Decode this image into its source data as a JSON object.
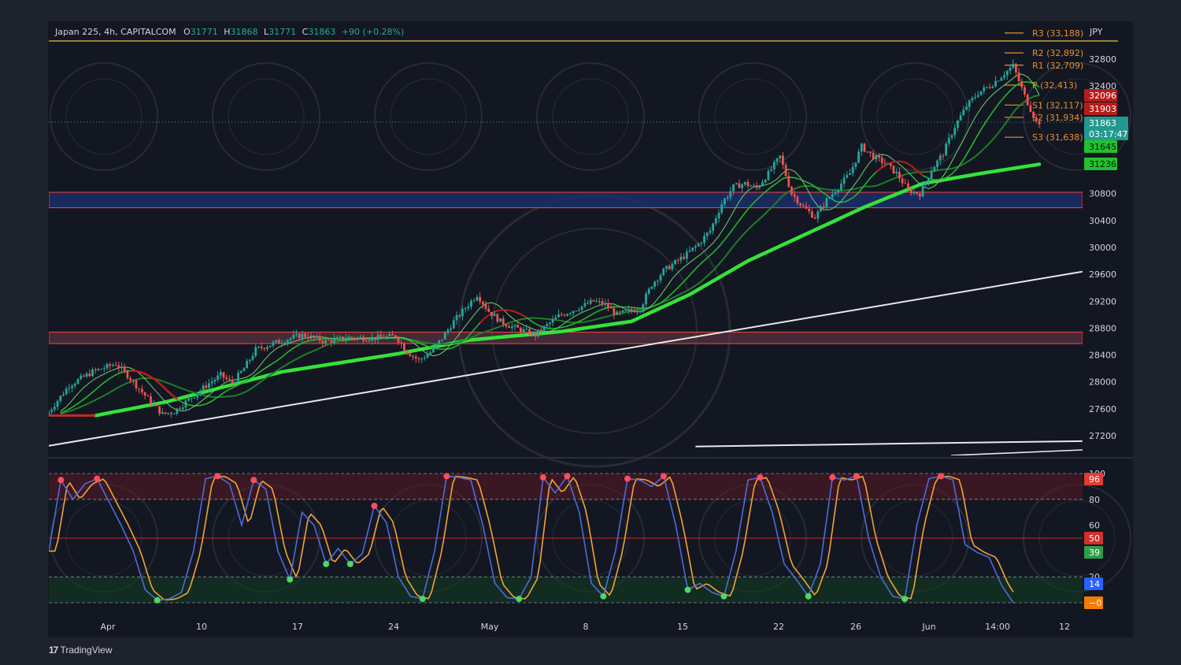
{
  "header": {
    "symbol": "Japan 225, 4h, CAPITALCOM",
    "o_label": "O",
    "o_value": "31771",
    "h_label": "H",
    "h_value": "31868",
    "l_label": "L",
    "l_value": "31771",
    "c_label": "C",
    "c_value": "31863",
    "change": "+90 (+0.28%)"
  },
  "currency": "JPY",
  "branding": "TradingView",
  "colors": {
    "bull": "#26a69a",
    "bear": "#ef5350",
    "ema_bright": "#33e33a",
    "ema_mid": "#22b52e",
    "ema_dark": "#1e7d2a",
    "pivot": "#e6902f",
    "trendline": "#e8e8e8",
    "zone_blue": "#1d2e66",
    "zone_red": "#ff4040",
    "stoch_k": "#4f6bd6",
    "stoch_d": "#f2a33a"
  },
  "price_axis": {
    "ticks": [
      "32800",
      "32400",
      "30800",
      "30400",
      "30000",
      "29600",
      "29200",
      "28800",
      "28400",
      "28000",
      "27600",
      "27200"
    ],
    "range": [
      26950,
      33650
    ]
  },
  "price_badges": [
    {
      "value": "32096",
      "bg": "#b71c1c"
    },
    {
      "value": "31903",
      "bg": "#b71c1c"
    },
    {
      "value": "31863",
      "sub": "03:17:47",
      "bg": "#22998f"
    },
    {
      "value": "31645",
      "bg": "#22c12e"
    },
    {
      "value": "31236",
      "bg": "#22c12e"
    }
  ],
  "pivots": [
    {
      "label": "R3 (33,188)",
      "value": 33188
    },
    {
      "label": "R2 (32,892)",
      "value": 32892
    },
    {
      "label": "R1 (32,709)",
      "value": 32709
    },
    {
      "label": "P (32,413)",
      "value": 32413
    },
    {
      "label": "S1 (32,117)",
      "value": 32117
    },
    {
      "label": "S2 (31,934)",
      "value": 31934
    },
    {
      "label": "S3 (31,638)",
      "value": 31638
    }
  ],
  "x_axis": {
    "labels": [
      "Apr",
      "10",
      "17",
      "24",
      "May",
      "8",
      "15",
      "22",
      "26",
      "Jun",
      "14:00",
      "12"
    ]
  },
  "oscillator": {
    "ticks": [
      "100",
      "80",
      "60",
      "20",
      "0"
    ],
    "levels": [
      80,
      50,
      20
    ],
    "badges": [
      {
        "value": "96",
        "bg": "#e53935"
      },
      {
        "value": "50",
        "bg": "#d32f2f"
      },
      {
        "value": "39",
        "bg": "#2e9e4a"
      },
      {
        "value": "14",
        "bg": "#2962ff"
      },
      {
        "value": "−0",
        "bg": "#f57c00"
      }
    ]
  },
  "chart_data": {
    "type": "line",
    "symbol": "Japan 225",
    "timeframe": "4h",
    "ylim": [
      26950,
      33650
    ],
    "zones": [
      {
        "from": 30590,
        "to": 30820
      },
      {
        "from": 28570,
        "to": 28740
      }
    ],
    "close_path": [
      {
        "day": 0,
        "price": 27500
      },
      {
        "day": 2,
        "price": 27950
      },
      {
        "day": 4,
        "price": 28150
      },
      {
        "day": 6,
        "price": 28270
      },
      {
        "day": 7,
        "price": 28100
      },
      {
        "day": 9,
        "price": 27700
      },
      {
        "day": 10,
        "price": 27520
      },
      {
        "day": 11,
        "price": 27560
      },
      {
        "day": 12,
        "price": 27700
      },
      {
        "day": 14,
        "price": 27980
      },
      {
        "day": 15,
        "price": 28100
      },
      {
        "day": 16,
        "price": 27980
      },
      {
        "day": 17,
        "price": 28200
      },
      {
        "day": 18,
        "price": 28480
      },
      {
        "day": 20,
        "price": 28600
      },
      {
        "day": 22,
        "price": 28700
      },
      {
        "day": 24,
        "price": 28600
      },
      {
        "day": 26,
        "price": 28660
      },
      {
        "day": 28,
        "price": 28650
      },
      {
        "day": 30,
        "price": 28680
      },
      {
        "day": 31,
        "price": 28450
      },
      {
        "day": 32,
        "price": 28320
      },
      {
        "day": 33,
        "price": 28440
      },
      {
        "day": 34,
        "price": 28650
      },
      {
        "day": 35,
        "price": 28900
      },
      {
        "day": 36,
        "price": 29100
      },
      {
        "day": 37,
        "price": 29300
      },
      {
        "day": 38,
        "price": 29050
      },
      {
        "day": 39,
        "price": 28900
      },
      {
        "day": 40,
        "price": 28820
      },
      {
        "day": 42,
        "price": 28700
      },
      {
        "day": 44,
        "price": 28980
      },
      {
        "day": 45,
        "price": 29050
      },
      {
        "day": 47,
        "price": 29200
      },
      {
        "day": 48,
        "price": 29150
      },
      {
        "day": 49,
        "price": 29000
      },
      {
        "day": 51,
        "price": 29100
      },
      {
        "day": 52,
        "price": 29450
      },
      {
        "day": 53,
        "price": 29650
      },
      {
        "day": 55,
        "price": 29900
      },
      {
        "day": 56,
        "price": 30050
      },
      {
        "day": 57,
        "price": 30250
      },
      {
        "day": 58,
        "price": 30650
      },
      {
        "day": 59,
        "price": 30900
      },
      {
        "day": 60,
        "price": 30950
      },
      {
        "day": 61,
        "price": 30880
      },
      {
        "day": 62,
        "price": 31100
      },
      {
        "day": 63,
        "price": 31350
      },
      {
        "day": 64,
        "price": 30800
      },
      {
        "day": 65,
        "price": 30600
      },
      {
        "day": 66,
        "price": 30450
      },
      {
        "day": 67,
        "price": 30700
      },
      {
        "day": 68,
        "price": 30900
      },
      {
        "day": 69,
        "price": 31100
      },
      {
        "day": 70,
        "price": 31500
      },
      {
        "day": 71,
        "price": 31350
      },
      {
        "day": 72,
        "price": 31250
      },
      {
        "day": 73,
        "price": 31100
      },
      {
        "day": 74,
        "price": 30850
      },
      {
        "day": 75,
        "price": 30800
      },
      {
        "day": 76,
        "price": 31150
      },
      {
        "day": 77,
        "price": 31400
      },
      {
        "day": 78,
        "price": 31800
      },
      {
        "day": 79,
        "price": 32100
      },
      {
        "day": 80,
        "price": 32300
      },
      {
        "day": 81,
        "price": 32400
      },
      {
        "day": 82,
        "price": 32550
      },
      {
        "day": 83,
        "price": 32700
      },
      {
        "day": 84,
        "price": 32250
      },
      {
        "day": 85,
        "price": 31863
      }
    ],
    "ema_slow": [
      {
        "day": 4,
        "price": 27500
      },
      {
        "day": 10,
        "price": 27700
      },
      {
        "day": 20,
        "price": 28150
      },
      {
        "day": 30,
        "price": 28420
      },
      {
        "day": 36,
        "price": 28620
      },
      {
        "day": 44,
        "price": 28750
      },
      {
        "day": 50,
        "price": 28900
      },
      {
        "day": 55,
        "price": 29300
      },
      {
        "day": 60,
        "price": 29800
      },
      {
        "day": 65,
        "price": 30200
      },
      {
        "day": 70,
        "price": 30600
      },
      {
        "day": 75,
        "price": 30950
      },
      {
        "day": 80,
        "price": 31100
      },
      {
        "day": 85,
        "price": 31236
      }
    ],
    "trendlines": [
      {
        "from": {
          "day": 0,
          "price": 27050
        },
        "to": {
          "day": 88.7,
          "price": 29640
        }
      },
      {
        "from": {
          "day": 55.5,
          "price": 27040
        },
        "to": {
          "day": 88.7,
          "price": 27120
        }
      }
    ],
    "stoch_k": [
      {
        "day": 0,
        "value": 40
      },
      {
        "day": 1,
        "value": 95
      },
      {
        "day": 2,
        "value": 80
      },
      {
        "day": 3,
        "value": 92
      },
      {
        "day": 4,
        "value": 96
      },
      {
        "day": 5,
        "value": 78
      },
      {
        "day": 6,
        "value": 60
      },
      {
        "day": 7,
        "value": 40
      },
      {
        "day": 8,
        "value": 10
      },
      {
        "day": 9,
        "value": 2
      },
      {
        "day": 10,
        "value": 3
      },
      {
        "day": 11,
        "value": 8
      },
      {
        "day": 12,
        "value": 40
      },
      {
        "day": 13,
        "value": 96
      },
      {
        "day": 14,
        "value": 98
      },
      {
        "day": 15,
        "value": 92
      },
      {
        "day": 16,
        "value": 60
      },
      {
        "day": 17,
        "value": 95
      },
      {
        "day": 18,
        "value": 88
      },
      {
        "day": 19,
        "value": 40
      },
      {
        "day": 20,
        "value": 18
      },
      {
        "day": 21,
        "value": 70
      },
      {
        "day": 22,
        "value": 60
      },
      {
        "day": 23,
        "value": 30
      },
      {
        "day": 24,
        "value": 42
      },
      {
        "day": 25,
        "value": 30
      },
      {
        "day": 26,
        "value": 38
      },
      {
        "day": 27,
        "value": 75
      },
      {
        "day": 28,
        "value": 62
      },
      {
        "day": 29,
        "value": 20
      },
      {
        "day": 30,
        "value": 5
      },
      {
        "day": 31,
        "value": 3
      },
      {
        "day": 32,
        "value": 40
      },
      {
        "day": 33,
        "value": 98
      },
      {
        "day": 34,
        "value": 97
      },
      {
        "day": 35,
        "value": 95
      },
      {
        "day": 36,
        "value": 60
      },
      {
        "day": 37,
        "value": 15
      },
      {
        "day": 38,
        "value": 4
      },
      {
        "day": 39,
        "value": 3
      },
      {
        "day": 40,
        "value": 20
      },
      {
        "day": 41,
        "value": 97
      },
      {
        "day": 42,
        "value": 85
      },
      {
        "day": 43,
        "value": 98
      },
      {
        "day": 44,
        "value": 70
      },
      {
        "day": 45,
        "value": 15
      },
      {
        "day": 46,
        "value": 5
      },
      {
        "day": 47,
        "value": 40
      },
      {
        "day": 48,
        "value": 96
      },
      {
        "day": 49,
        "value": 95
      },
      {
        "day": 50,
        "value": 90
      },
      {
        "day": 51,
        "value": 98
      },
      {
        "day": 52,
        "value": 60
      },
      {
        "day": 53,
        "value": 10
      },
      {
        "day": 54,
        "value": 15
      },
      {
        "day": 55,
        "value": 8
      },
      {
        "day": 56,
        "value": 5
      },
      {
        "day": 57,
        "value": 40
      },
      {
        "day": 58,
        "value": 95
      },
      {
        "day": 59,
        "value": 97
      },
      {
        "day": 60,
        "value": 70
      },
      {
        "day": 61,
        "value": 30
      },
      {
        "day": 62,
        "value": 18
      },
      {
        "day": 63,
        "value": 5
      },
      {
        "day": 64,
        "value": 30
      },
      {
        "day": 65,
        "value": 97
      },
      {
        "day": 66,
        "value": 95
      },
      {
        "day": 67,
        "value": 98
      },
      {
        "day": 68,
        "value": 50
      },
      {
        "day": 69,
        "value": 20
      },
      {
        "day": 70,
        "value": 5
      },
      {
        "day": 71,
        "value": 3
      },
      {
        "day": 72,
        "value": 60
      },
      {
        "day": 73,
        "value": 96
      },
      {
        "day": 74,
        "value": 98
      },
      {
        "day": 75,
        "value": 95
      },
      {
        "day": 76,
        "value": 45
      },
      {
        "day": 77,
        "value": 39
      },
      {
        "day": 78,
        "value": 35
      },
      {
        "day": 79,
        "value": 14
      },
      {
        "day": 80,
        "value": 0
      }
    ]
  }
}
